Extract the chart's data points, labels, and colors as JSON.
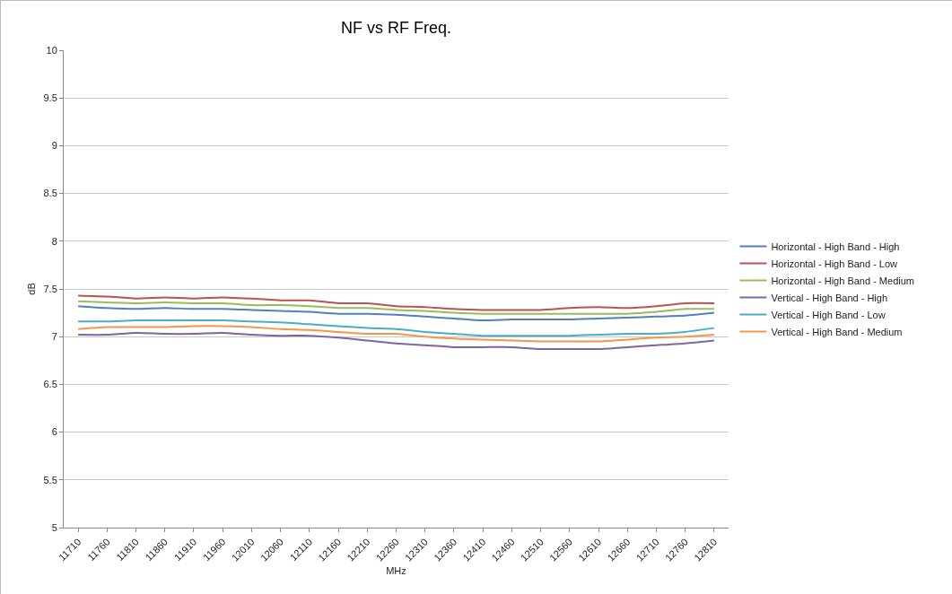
{
  "chart_data": {
    "type": "line",
    "title": "NF vs RF Freq.",
    "xlabel": "MHz",
    "ylabel": "dB",
    "categories": [
      "11710",
      "11760",
      "11810",
      "11860",
      "11910",
      "11960",
      "12010",
      "12060",
      "12110",
      "12160",
      "12210",
      "12260",
      "12310",
      "12360",
      "12410",
      "12460",
      "12510",
      "12560",
      "12610",
      "12660",
      "12710",
      "12760",
      "12810"
    ],
    "ylim": [
      5,
      10
    ],
    "yticks": [
      5,
      5.5,
      6,
      6.5,
      7,
      7.5,
      8,
      8.5,
      9,
      9.5,
      10
    ],
    "grid": "y",
    "legend": "right",
    "marker": "none",
    "line_style": "solid",
    "series": [
      {
        "name": "Horizontal - High Band - High",
        "color": "#4f81bd",
        "values": [
          7.32,
          7.3,
          7.29,
          7.3,
          7.29,
          7.29,
          7.28,
          7.27,
          7.26,
          7.24,
          7.24,
          7.23,
          7.21,
          7.19,
          7.17,
          7.18,
          7.18,
          7.18,
          7.19,
          7.2,
          7.21,
          7.22,
          7.25
        ]
      },
      {
        "name": "Horizontal - High Band - Low",
        "color": "#c0504d",
        "values": [
          7.43,
          7.42,
          7.4,
          7.41,
          7.4,
          7.41,
          7.4,
          7.38,
          7.38,
          7.35,
          7.35,
          7.32,
          7.31,
          7.29,
          7.28,
          7.28,
          7.28,
          7.3,
          7.31,
          7.3,
          7.32,
          7.35,
          7.35
        ]
      },
      {
        "name": "Horizontal - High Band - Medium",
        "color": "#9bbb59",
        "values": [
          7.37,
          7.36,
          7.35,
          7.36,
          7.35,
          7.35,
          7.33,
          7.33,
          7.32,
          7.3,
          7.3,
          7.28,
          7.27,
          7.25,
          7.24,
          7.24,
          7.24,
          7.24,
          7.24,
          7.24,
          7.26,
          7.29,
          7.29
        ]
      },
      {
        "name": "Vertical - High Band - High",
        "color": "#8064a2",
        "values": [
          7.02,
          7.02,
          7.04,
          7.03,
          7.03,
          7.04,
          7.02,
          7.01,
          7.01,
          6.99,
          6.96,
          6.93,
          6.91,
          6.89,
          6.89,
          6.89,
          6.87,
          6.87,
          6.87,
          6.89,
          6.91,
          6.93,
          6.96
        ]
      },
      {
        "name": "Vertical - High Band - Low",
        "color": "#4bacc6",
        "values": [
          7.16,
          7.16,
          7.17,
          7.17,
          7.17,
          7.17,
          7.16,
          7.15,
          7.13,
          7.11,
          7.09,
          7.08,
          7.05,
          7.03,
          7.01,
          7.01,
          7.01,
          7.01,
          7.02,
          7.03,
          7.03,
          7.05,
          7.09
        ]
      },
      {
        "name": "Vertical - High Band - Medium",
        "color": "#f79646",
        "values": [
          7.08,
          7.1,
          7.1,
          7.1,
          7.11,
          7.11,
          7.1,
          7.08,
          7.07,
          7.05,
          7.03,
          7.03,
          7.0,
          6.98,
          6.97,
          6.96,
          6.95,
          6.95,
          6.95,
          6.97,
          6.99,
          7.0,
          7.02
        ]
      }
    ]
  }
}
